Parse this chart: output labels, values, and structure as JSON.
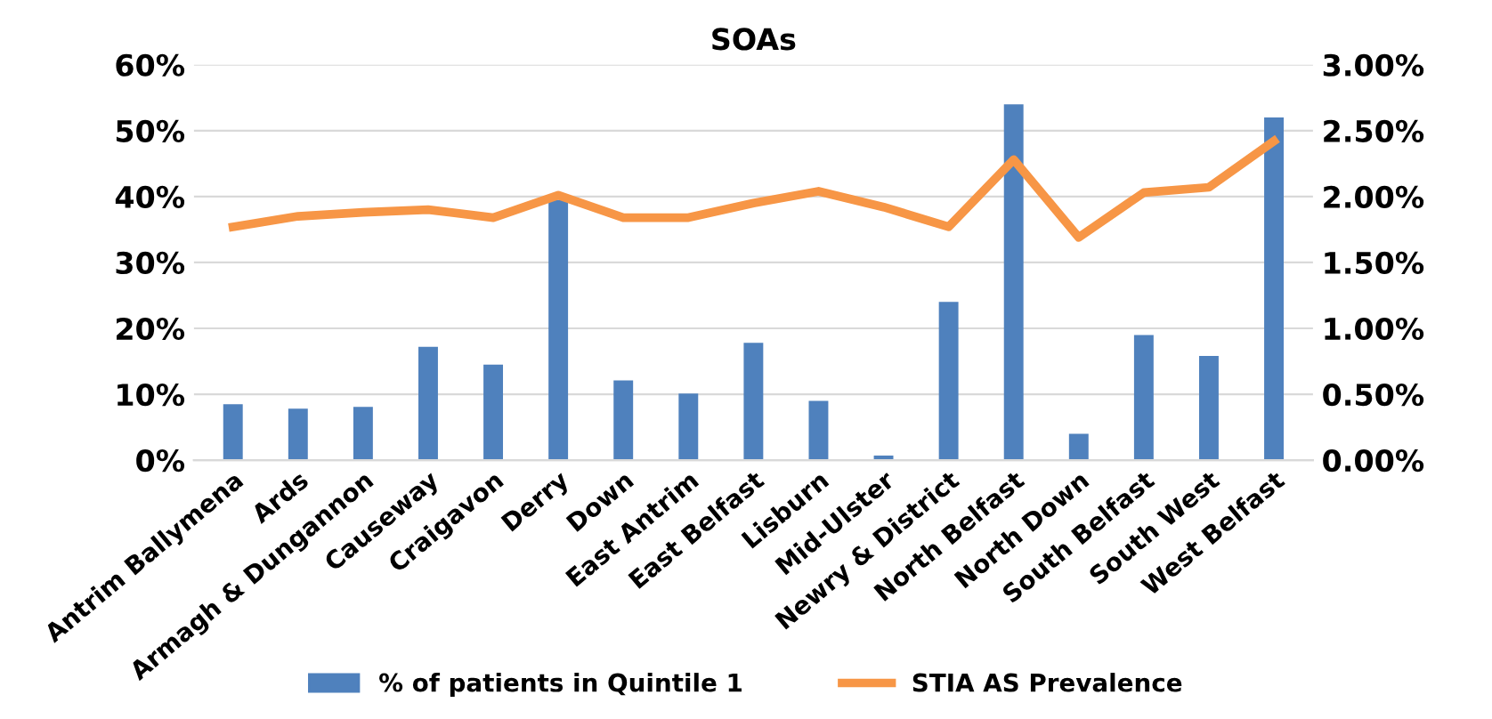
{
  "chart_data": {
    "type": "bar",
    "title": "SOAs",
    "categories": [
      "Antrim Ballymena",
      "Ards",
      "Armagh & Dungannon",
      "Causeway",
      "Craigavon",
      "Derry",
      "Down",
      "East Antrim",
      "East Belfast",
      "Lisburn",
      "Mid-Ulster",
      "Newry & District",
      "North Belfast",
      "North Down",
      "South Belfast",
      "South West",
      "West Belfast"
    ],
    "series": [
      {
        "name": "% of patients in Quintile 1",
        "color": "#4f81bd",
        "values": [
          8.5,
          7.8,
          8.1,
          17.2,
          14.5,
          39.5,
          12.1,
          10.1,
          17.8,
          9.0,
          0.7,
          24.0,
          54.0,
          4.0,
          19.0,
          15.8,
          52.0
        ]
      },
      {
        "name": "STIA AS Prevalence",
        "type": "line",
        "axis": "y2",
        "color": "#f79646",
        "values": [
          1.77,
          1.85,
          1.88,
          1.9,
          1.84,
          2.01,
          1.84,
          1.84,
          1.95,
          2.04,
          1.92,
          1.77,
          2.28,
          1.69,
          2.03,
          2.07,
          2.42
        ]
      }
    ],
    "ylim": [
      0,
      60
    ],
    "yticks": [
      {
        "value": 0,
        "label": "0%"
      },
      {
        "value": 10,
        "label": "10%"
      },
      {
        "value": 20,
        "label": "20%"
      },
      {
        "value": 30,
        "label": "30%"
      },
      {
        "value": 40,
        "label": "40%"
      },
      {
        "value": 50,
        "label": "50%"
      },
      {
        "value": 60,
        "label": "60%"
      }
    ],
    "y2lim": [
      0,
      3
    ],
    "y2ticks": [
      {
        "value": 0,
        "label": "0.00%"
      },
      {
        "value": 0.5,
        "label": "0.50%"
      },
      {
        "value": 1,
        "label": "1.00%"
      },
      {
        "value": 1.5,
        "label": "1.50%"
      },
      {
        "value": 2,
        "label": "2.00%"
      },
      {
        "value": 2.5,
        "label": "2.50%"
      },
      {
        "value": 3,
        "label": "3.00%"
      }
    ],
    "grid": "y",
    "legend": "bottom",
    "marker": "none",
    "line_style": "solid"
  }
}
